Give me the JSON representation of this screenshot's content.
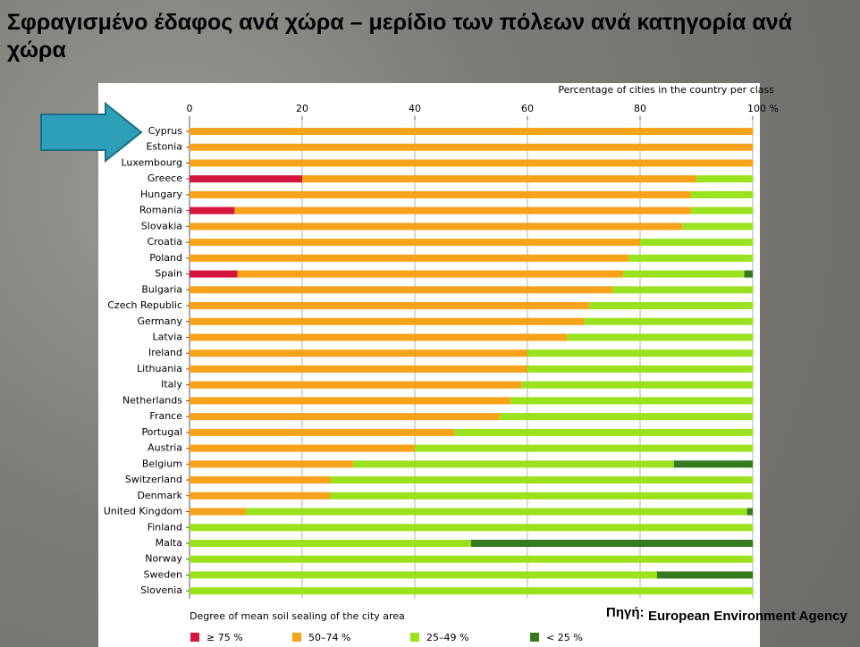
{
  "slide": {
    "title": "Σφραγισμένο έδαφος ανά χώρα – μερίδιο των πόλεων ανά κατηγορία ανά χώρα",
    "source_label": "Πηγή:",
    "source": "European Environment Agency"
  },
  "chart_data": {
    "type": "bar",
    "orientation": "horizontal",
    "stacked": true,
    "x_label": "Percentage of cities in the country per class",
    "legend_title": "Degree of mean soil sealing of the city area",
    "xlim": [
      0,
      100
    ],
    "xticks": [
      0,
      20,
      40,
      60,
      80,
      {
        "value": 100,
        "label": "100 %"
      }
    ],
    "grid": true,
    "categories": [
      "Cyprus",
      "Estonia",
      "Luxembourg",
      "Greece",
      "Hungary",
      "Romania",
      "Slovakia",
      "Croatia",
      "Poland",
      "Spain",
      "Bulgaria",
      "Czech Republic",
      "Germany",
      "Latvia",
      "Ireland",
      "Lithuania",
      "Italy",
      "Netherlands",
      "France",
      "Portugal",
      "Austria",
      "Belgium",
      "Switzerland",
      "Denmark",
      "United Kingdom",
      "Finland",
      "Malta",
      "Norway",
      "Sweden",
      "Slovenia"
    ],
    "series": [
      {
        "name": "≥ 75 %",
        "color": "#d5163c",
        "values": [
          0,
          0,
          0,
          20,
          0,
          8,
          0,
          0,
          0,
          8.5,
          0,
          0,
          0,
          0,
          0,
          0,
          0,
          0,
          0,
          0,
          0,
          0,
          0,
          0,
          0,
          0,
          0,
          0,
          0,
          0
        ]
      },
      {
        "name": "50–74 %",
        "color": "#f7a21b",
        "values": [
          100,
          100,
          100,
          70,
          89,
          81,
          87.5,
          80,
          78,
          68.5,
          75,
          71,
          70,
          67,
          60,
          60,
          59,
          57,
          55,
          47,
          40,
          29,
          25,
          25,
          10,
          0,
          0,
          0,
          0,
          0
        ]
      },
      {
        "name": "25–49 %",
        "color": "#9be21e",
        "values": [
          0,
          0,
          0,
          10,
          11,
          11,
          12.5,
          20,
          22,
          21.5,
          25,
          29,
          30,
          33,
          40,
          40,
          41,
          43,
          45,
          53,
          60,
          57,
          75,
          75,
          89,
          100,
          50,
          100,
          83,
          100
        ]
      },
      {
        "name": "< 25 %",
        "color": "#357a1f",
        "values": [
          0,
          0,
          0,
          0,
          0,
          0,
          0,
          0,
          0,
          1.5,
          0,
          0,
          0,
          0,
          0,
          0,
          0,
          0,
          0,
          0,
          0,
          14,
          0,
          0,
          1,
          0,
          50,
          0,
          17,
          0
        ]
      }
    ]
  }
}
